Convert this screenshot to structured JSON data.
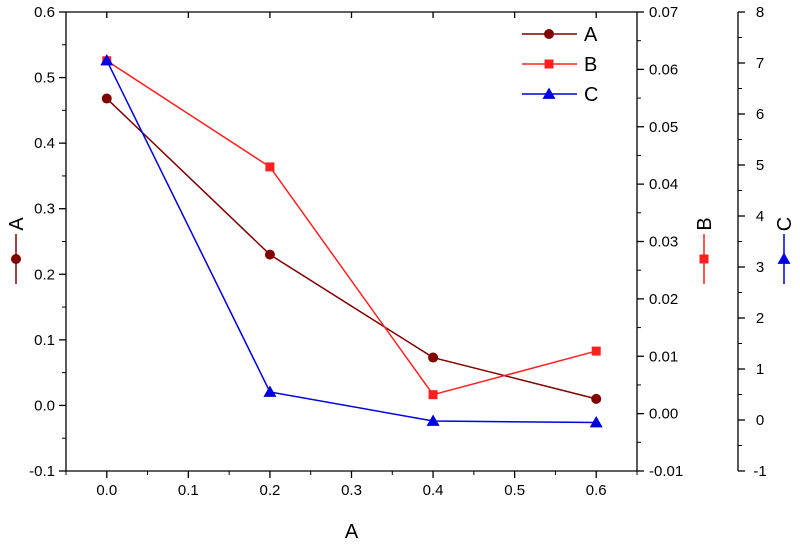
{
  "chart_data": {
    "type": "line",
    "x": [
      0.0,
      0.2,
      0.4,
      0.6
    ],
    "xlabel": "A",
    "xlim": [
      -0.05,
      0.65
    ],
    "x_ticks": [
      "0.0",
      "0.1",
      "0.2",
      "0.3",
      "0.4",
      "0.5",
      "0.6"
    ],
    "grid": false,
    "legend_position": "top-right",
    "axes": [
      {
        "id": "A",
        "label": "A",
        "side": "left",
        "ylim": [
          -0.1,
          0.6
        ],
        "ticks": [
          "-0.1",
          "0.0",
          "0.1",
          "0.2",
          "0.3",
          "0.4",
          "0.5",
          "0.6"
        ]
      },
      {
        "id": "B",
        "label": "B",
        "side": "right",
        "ylim": [
          -0.01,
          0.07
        ],
        "ticks": [
          "-0.01",
          "0.00",
          "0.01",
          "0.02",
          "0.03",
          "0.04",
          "0.05",
          "0.06",
          "0.07"
        ]
      },
      {
        "id": "C",
        "label": "C",
        "side": "right-offset",
        "ylim": [
          -1,
          8
        ],
        "ticks": [
          "-1",
          "0",
          "1",
          "2",
          "3",
          "4",
          "5",
          "6",
          "7",
          "8"
        ]
      }
    ],
    "series": [
      {
        "name": "A",
        "axis": "A",
        "color": "#800000",
        "marker": "circle",
        "values": [
          0.468,
          0.23,
          0.073,
          0.01
        ]
      },
      {
        "name": "B",
        "axis": "B",
        "color": "#ff2020",
        "marker": "square",
        "values": [
          0.0615,
          0.043,
          0.0033,
          0.0109
        ]
      },
      {
        "name": "C",
        "axis": "C",
        "color": "#0000e0",
        "marker": "triangle",
        "values": [
          7.05,
          0.55,
          -0.02,
          -0.05
        ]
      }
    ]
  }
}
